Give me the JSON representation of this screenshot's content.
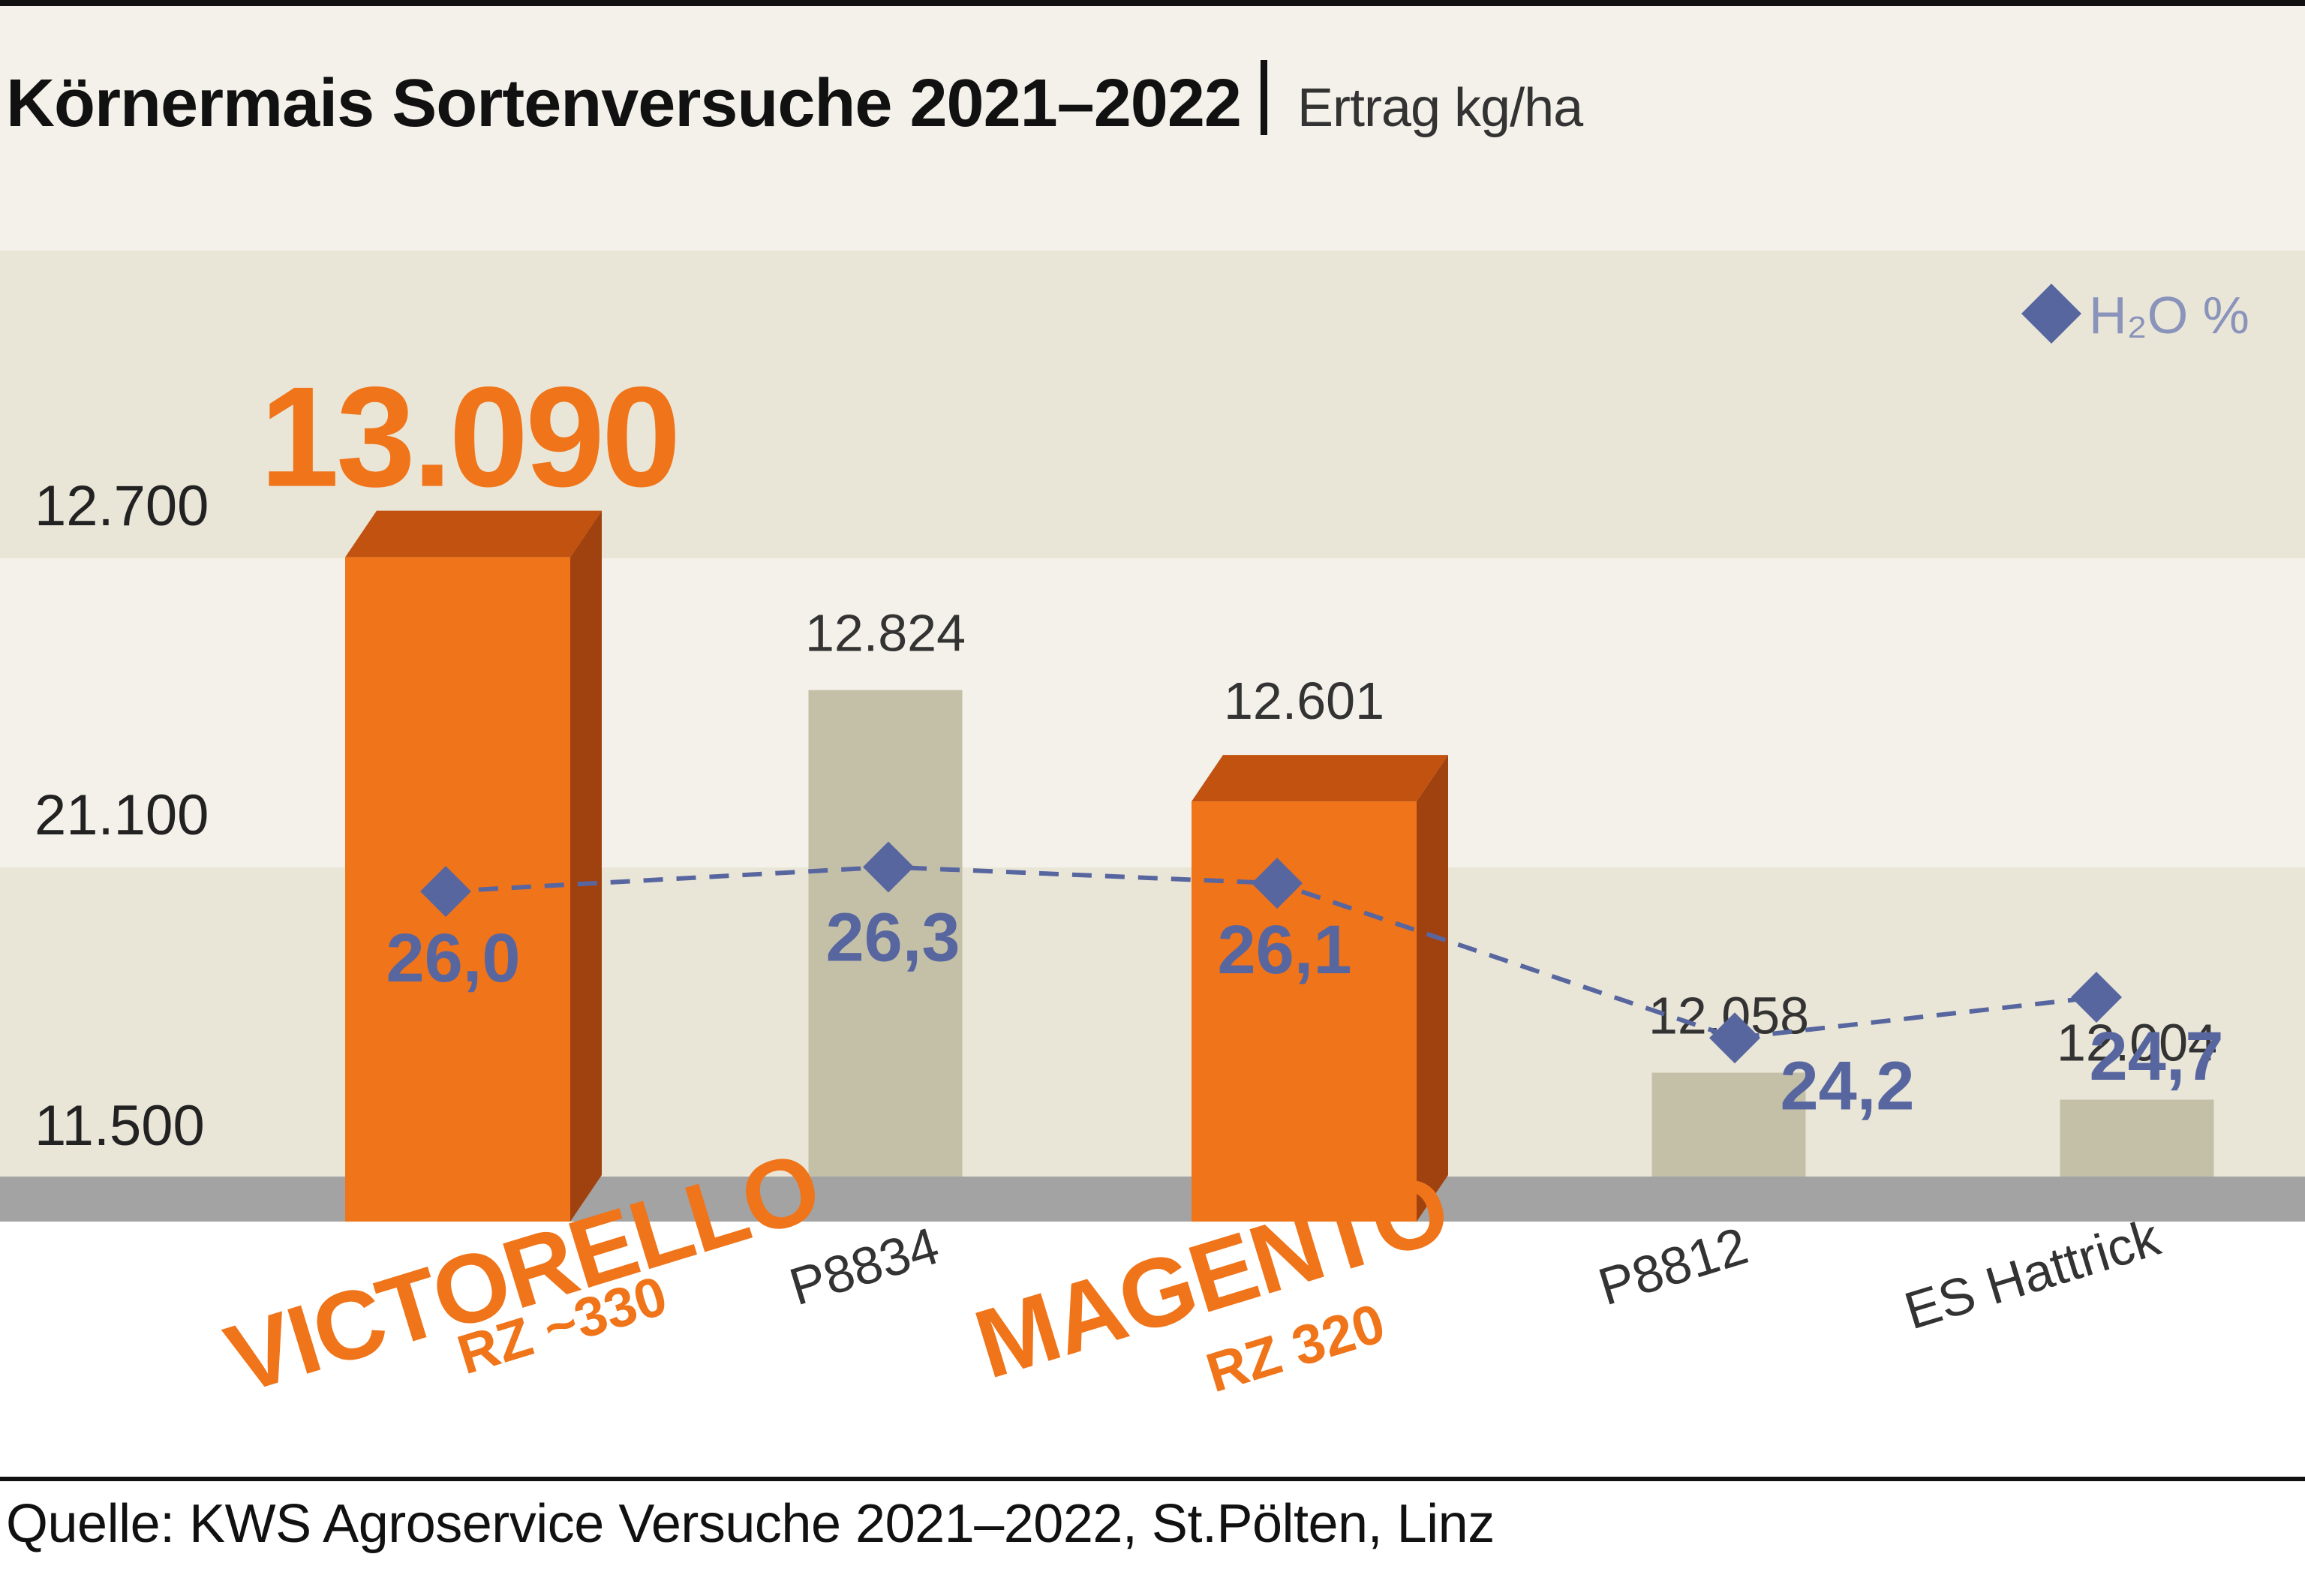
{
  "header": {
    "title": "Körnermais Sortenversuche 2021–2022",
    "subtitle": "Ertrag kg/ha"
  },
  "footer": {
    "source": "Quelle: KWS Agroservice Versuche 2021–2022, St.Pölten, Linz"
  },
  "legend": {
    "label": "H₂O %",
    "icon": "diamond-icon"
  },
  "colors": {
    "highlight": "#f07419",
    "highlight_dark": "#a0420f",
    "highlight_top": "#c2520f",
    "competitor": "#c4c0a8",
    "moisture": "#5866a0",
    "band_dark": "#e9e6d8",
    "band_light": "#f3f1e9",
    "floor": "#a3a3a3"
  },
  "chart_data": {
    "type": "bar",
    "title": "Körnermais Sortenversuche 2021–2022",
    "ylabel": "Ertrag kg/ha",
    "y_tick_labels": [
      "12.700",
      "21.100",
      "11.500"
    ],
    "categories": [
      "VICTORELLO",
      "P8834",
      "MAGENTO",
      "P8812",
      "ES Hattrick"
    ],
    "category_sublabels": [
      "RZ ~330",
      "",
      "RZ 320",
      "",
      ""
    ],
    "highlighted": [
      true,
      false,
      true,
      false,
      false
    ],
    "series": [
      {
        "name": "Ertrag kg/ha",
        "values": [
          13090,
          12824,
          12601,
          12058,
          12004
        ],
        "value_labels": [
          "13.090",
          "12.824",
          "12.601",
          "12.058",
          "12.004"
        ]
      },
      {
        "name": "H₂O %",
        "values": [
          26.0,
          26.3,
          26.1,
          24.2,
          24.7
        ],
        "value_labels": [
          "26,0",
          "26,3",
          "26,1",
          "24,2",
          "24,7"
        ]
      }
    ],
    "grid": false,
    "legend_position": "top-right"
  }
}
